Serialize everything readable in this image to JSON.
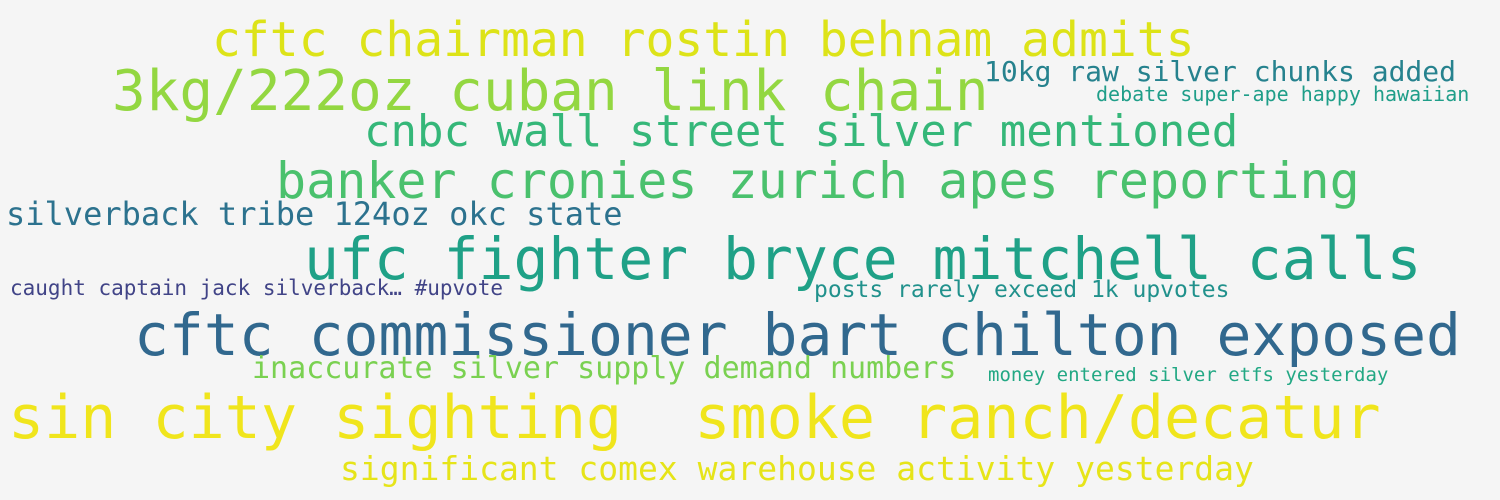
{
  "background": "#f5f5f5",
  "words": [
    {
      "text": "cftc chairman rostin behnam admits",
      "color": "#dde318"
    },
    {
      "text": "3kg/222oz cuban link chain",
      "color": "#93d741"
    },
    {
      "text": "10kg raw silver chunks added",
      "color": "#26828e"
    },
    {
      "text": "debate super-ape happy hawaiian",
      "color": "#1f9e89"
    },
    {
      "text": "cnbc wall street silver mentioned",
      "color": "#35b779"
    },
    {
      "text": "banker cronies zurich apes reporting",
      "color": "#4ac16d"
    },
    {
      "text": "silverback tribe 124oz okc state",
      "color": "#2c728e"
    },
    {
      "text": "ufc fighter bryce mitchell calls",
      "color": "#1fa187"
    },
    {
      "text": "caught captain jack silverback… #upvote",
      "color": "#414487"
    },
    {
      "text": "posts rarely exceed 1k upvotes",
      "color": "#21918c"
    },
    {
      "text": "cftc commissioner bart chilton exposed",
      "color": "#31688e"
    },
    {
      "text": "inaccurate silver supply demand numbers",
      "color": "#7ad151"
    },
    {
      "text": "money entered silver etfs yesterday",
      "color": "#22a884"
    },
    {
      "text": "sin city sighting  smoke ranch/decatur",
      "color": "#f0e51c"
    },
    {
      "text": "significant comex warehouse activity yesterday",
      "color": "#e6e419"
    }
  ]
}
